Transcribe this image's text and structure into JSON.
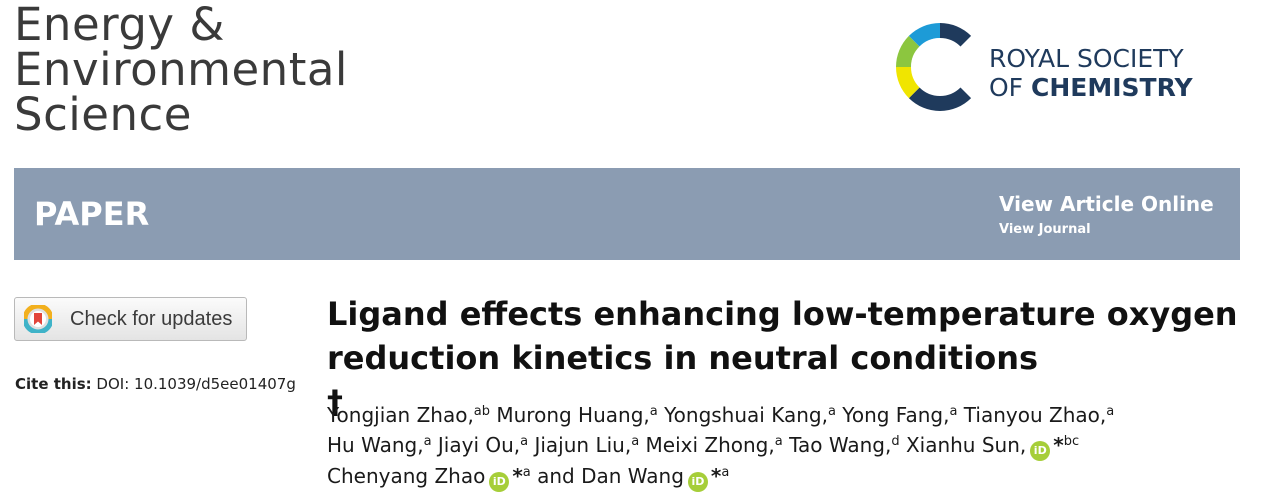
{
  "journal": {
    "title_lines": [
      "Energy &",
      "Environmental",
      "Science"
    ]
  },
  "publisher": {
    "line1": "ROYAL SOCIETY",
    "line2_prefix": "OF ",
    "line2_bold": "CHEMISTRY"
  },
  "banner": {
    "type": "PAPER",
    "view_article": "View Article Online",
    "view_journal": "View Journal"
  },
  "check_updates": {
    "label": "Check for updates",
    "icon": "crossmark-icon"
  },
  "cite": {
    "label": "Cite this:",
    "doi": "DOI: 10.1039/d5ee01407g"
  },
  "article": {
    "title_line1": "Ligand effects enhancing low-temperature oxygen",
    "title_line2": "reduction kinetics in neutral conditions",
    "title_mark": "†"
  },
  "authors": [
    {
      "name": "Yongjian Zhao,",
      "sup": "ab"
    },
    {
      "name": "Murong Huang,",
      "sup": "a"
    },
    {
      "name": "Yongshuai Kang,",
      "sup": "a"
    },
    {
      "name": "Yong Fang,",
      "sup": "a"
    },
    {
      "name": "Tianyou Zhao,",
      "sup": "a"
    },
    {
      "name": "Hu Wang,",
      "sup": "a"
    },
    {
      "name": "Jiayi Ou,",
      "sup": "a"
    },
    {
      "name": "Jiajun Liu,",
      "sup": "a"
    },
    {
      "name": "Meixi Zhong,",
      "sup": "a"
    },
    {
      "name": "Tao Wang,",
      "sup": "d"
    },
    {
      "name": "Xianhu Sun,",
      "sup": "bc",
      "orcid": "iD",
      "star": "*"
    },
    {
      "name": "Chenyang Zhao",
      "sup": "a",
      "orcid": "iD",
      "star": "*"
    },
    {
      "name": "and Dan Wang",
      "sup": "a",
      "orcid": "iD",
      "star": "*"
    }
  ],
  "colors": {
    "banner": "#8b9cb2",
    "rsc_navy": "#1f3a5c",
    "orcid_green": "#a6ce39"
  }
}
